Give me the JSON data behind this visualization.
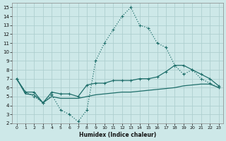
{
  "xlabel": "Humidex (Indice chaleur)",
  "background_color": "#cde8e8",
  "grid_color": "#aecfcf",
  "line_color": "#1e6e6a",
  "xlim": [
    -0.5,
    23.5
  ],
  "ylim": [
    2,
    15.5
  ],
  "xticks": [
    0,
    1,
    2,
    3,
    4,
    5,
    6,
    7,
    8,
    9,
    10,
    11,
    12,
    13,
    14,
    15,
    16,
    17,
    18,
    19,
    20,
    21,
    22,
    23
  ],
  "yticks": [
    2,
    3,
    4,
    5,
    6,
    7,
    8,
    9,
    10,
    11,
    12,
    13,
    14,
    15
  ],
  "line1_x": [
    0,
    1,
    2,
    3,
    4,
    5,
    6,
    7,
    8,
    9,
    10,
    11,
    12,
    13,
    14,
    15,
    16,
    17,
    18,
    19,
    20,
    21,
    22,
    23
  ],
  "line1_y": [
    7.0,
    5.5,
    5.0,
    4.3,
    5.2,
    3.5,
    3.0,
    2.2,
    3.5,
    9.0,
    11.0,
    12.5,
    14.0,
    15.0,
    13.0,
    12.7,
    11.0,
    10.5,
    8.5,
    7.5,
    8.0,
    7.0,
    6.5,
    6.0
  ],
  "line2_x": [
    0,
    1,
    2,
    3,
    4,
    5,
    6,
    7,
    8,
    9,
    10,
    11,
    12,
    13,
    14,
    15,
    16,
    17,
    18,
    19,
    20,
    21,
    22,
    23
  ],
  "line2_y": [
    7.0,
    5.5,
    5.5,
    4.3,
    5.5,
    5.3,
    5.3,
    5.0,
    6.3,
    6.5,
    6.5,
    6.8,
    6.8,
    6.8,
    7.0,
    7.0,
    7.2,
    7.8,
    8.5,
    8.5,
    8.0,
    7.5,
    7.0,
    6.2
  ],
  "line3_x": [
    0,
    1,
    2,
    3,
    4,
    5,
    6,
    7,
    8,
    9,
    10,
    11,
    12,
    13,
    14,
    15,
    16,
    17,
    18,
    19,
    20,
    21,
    22,
    23
  ],
  "line3_y": [
    7.0,
    5.3,
    5.2,
    4.3,
    5.0,
    4.8,
    4.8,
    4.8,
    5.0,
    5.2,
    5.3,
    5.4,
    5.5,
    5.5,
    5.6,
    5.7,
    5.8,
    5.9,
    6.0,
    6.2,
    6.3,
    6.4,
    6.4,
    6.0
  ]
}
